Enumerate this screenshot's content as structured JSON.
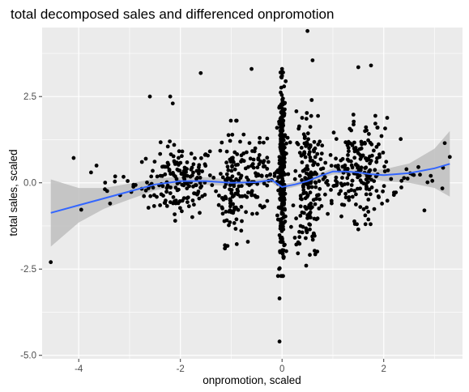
{
  "chart_data": {
    "type": "scatter",
    "title": "total decomposed sales and differenced onpromotion",
    "xlabel": "onpromotion, scaled",
    "ylabel": "total sales, scaled",
    "xlim": [
      -4.72,
      3.55
    ],
    "ylim": [
      -5.1,
      4.5
    ],
    "x_ticks": [
      -4,
      -2,
      0,
      2
    ],
    "x_tick_labels": [
      "-4",
      "-2",
      "0",
      "2"
    ],
    "y_ticks": [
      -5.0,
      -2.5,
      0.0,
      2.5
    ],
    "y_tick_labels": [
      "-5.0",
      "-2.5",
      "0.0",
      "2.5"
    ],
    "grid": true,
    "panel_background": "#ebebeb",
    "point_color": "#000000",
    "smooth_color": "#3366ff",
    "ribbon_color": "#bebebe",
    "notable_points": [
      {
        "x": -4.55,
        "y": -2.3
      },
      {
        "x": -4.1,
        "y": 0.72
      },
      {
        "x": -3.65,
        "y": 0.5
      },
      {
        "x": -3.95,
        "y": -0.78
      },
      {
        "x": -2.6,
        "y": 2.5
      },
      {
        "x": -2.2,
        "y": 2.5
      },
      {
        "x": -2.15,
        "y": 2.3
      },
      {
        "x": -1.6,
        "y": 3.18
      },
      {
        "x": -0.6,
        "y": 3.3
      },
      {
        "x": 0.0,
        "y": 3.3
      },
      {
        "x": 0.0,
        "y": 3.1
      },
      {
        "x": 0.5,
        "y": 4.4
      },
      {
        "x": 0.6,
        "y": 3.55
      },
      {
        "x": 1.5,
        "y": 3.35
      },
      {
        "x": 1.75,
        "y": 3.4
      },
      {
        "x": 3.3,
        "y": 0.75
      },
      {
        "x": 3.2,
        "y": 1.15
      },
      {
        "x": -0.05,
        "y": -3.35
      },
      {
        "x": -0.05,
        "y": -4.6
      },
      {
        "x": 2.8,
        "y": -0.8
      },
      {
        "x": 1.5,
        "y": -1.35
      }
    ],
    "clusters": [
      {
        "x": -2.0,
        "spread": 0.33,
        "n": 160,
        "ymin": -1.1,
        "ymax": 1.2
      },
      {
        "x": -1.0,
        "spread": 0.12,
        "n": 110,
        "ymin": -1.9,
        "ymax": 1.8
      },
      {
        "x": -0.5,
        "spread": 0.22,
        "n": 80,
        "ymin": -0.9,
        "ymax": 1.3
      },
      {
        "x": 0.0,
        "spread": 0.035,
        "n": 280,
        "ymin": -2.7,
        "ymax": 3.2
      },
      {
        "x": 0.5,
        "spread": 0.13,
        "n": 170,
        "ymin": -2.4,
        "ymax": 2.4
      },
      {
        "x": 1.0,
        "spread": 0.22,
        "n": 50,
        "ymin": -0.9,
        "ymax": 1.0
      },
      {
        "x": 1.6,
        "spread": 0.28,
        "n": 160,
        "ymin": -1.2,
        "ymax": 2.0
      },
      {
        "x": -3.2,
        "spread": 0.35,
        "n": 18,
        "ymin": -0.6,
        "ymax": 0.3
      },
      {
        "x": 2.7,
        "spread": 0.4,
        "n": 18,
        "ymin": -0.3,
        "ymax": 0.6
      }
    ],
    "smooth_line": {
      "x": [
        -4.55,
        -4.0,
        -3.5,
        -3.0,
        -2.5,
        -2.0,
        -1.5,
        -1.0,
        -0.5,
        -0.2,
        0.0,
        0.25,
        0.5,
        0.75,
        1.0,
        1.25,
        1.5,
        1.75,
        2.0,
        2.5,
        3.0,
        3.3
      ],
      "y": [
        -0.87,
        -0.65,
        -0.45,
        -0.25,
        -0.05,
        0.05,
        0.05,
        0.0,
        0.02,
        0.08,
        -0.12,
        -0.05,
        0.05,
        0.2,
        0.33,
        0.33,
        0.3,
        0.25,
        0.22,
        0.28,
        0.42,
        0.55
      ],
      "lower": [
        -1.85,
        -1.15,
        -0.75,
        -0.48,
        -0.22,
        -0.08,
        -0.06,
        -0.09,
        -0.06,
        0.0,
        -0.2,
        -0.12,
        -0.02,
        0.12,
        0.24,
        0.24,
        0.2,
        0.13,
        0.05,
        0.0,
        -0.15,
        -0.4
      ],
      "upper": [
        0.1,
        -0.15,
        -0.15,
        -0.02,
        0.12,
        0.18,
        0.16,
        0.09,
        0.1,
        0.16,
        -0.04,
        0.02,
        0.12,
        0.28,
        0.42,
        0.42,
        0.4,
        0.37,
        0.39,
        0.56,
        0.99,
        1.5
      ]
    }
  }
}
